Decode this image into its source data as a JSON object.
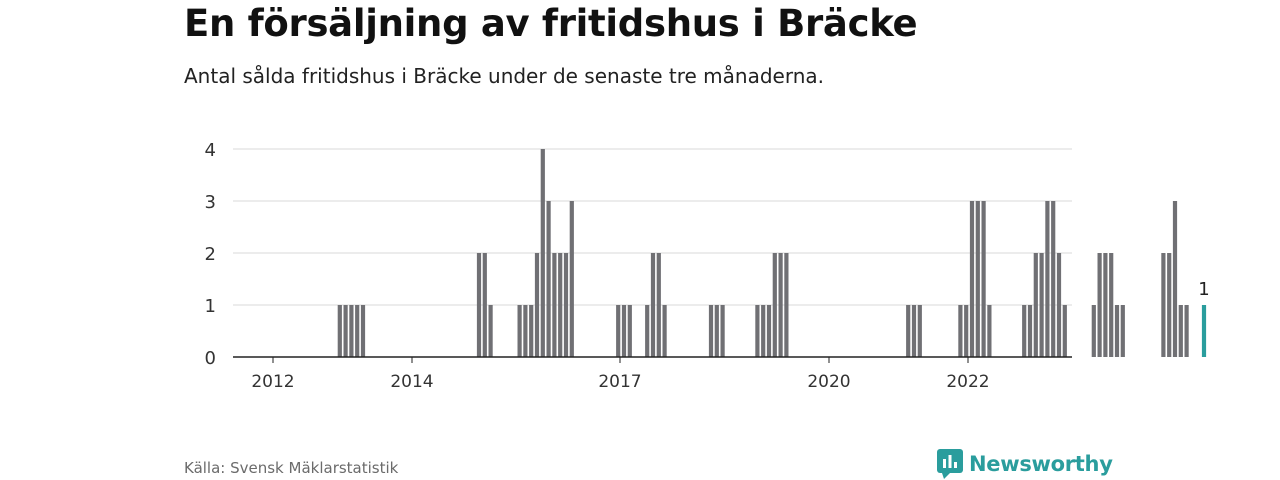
{
  "title": "En försäljning av fritidshus i Bräcke",
  "subtitle": "Antal sålda fritidshus i Bräcke under de senaste tre månaderna.",
  "source": "Källa: Svensk Mäklarstatistik",
  "logo_text": "Newsworthy",
  "colors": {
    "bar": "#707074",
    "highlight": "#2a9d9d",
    "grid": "#d9d9d9",
    "axis": "#222222"
  },
  "chart_data": {
    "type": "bar",
    "xlabel": "",
    "ylabel": "",
    "ylim": [
      0,
      4
    ],
    "yticks": [
      0,
      1,
      2,
      3,
      4
    ],
    "xticks": [
      "2012",
      "2014",
      "2017",
      "2020",
      "2022"
    ],
    "grid": true,
    "annotation": "1",
    "highlight_last": true,
    "categories": [
      "2011-Q4",
      "2012-Q1",
      "2012-Q2",
      "2012-Q3",
      "2012-Q4",
      "2013-Q1",
      "2013-Q2",
      "2013-Q3",
      "2013-Q4",
      "2014-Q1",
      "2014-Q2",
      "2014-Q3",
      "2014-Q4",
      "2015-Q1",
      "2015-Q2",
      "2015-Q3",
      "2015-Q4",
      "2016-Q1",
      "2016-Q2",
      "2016-Q3",
      "2016-Q4",
      "2017-Q1",
      "2017-Q2",
      "2017-Q3",
      "2017-Q4",
      "2018-Q1",
      "2018-Q2",
      "2018-Q3",
      "2018-Q4",
      "2019-Q1",
      "2019-Q2",
      "2019-Q3",
      "2019-Q4",
      "2020-Q1",
      "2020-Q2",
      "2020-Q3",
      "2020-Q4",
      "2021-Q1",
      "2021-Q2",
      "2021-Q3",
      "2021-Q4",
      "2022-Q1",
      "2022-Q2",
      "2022-Q3",
      "2022-Q4",
      "2023-Q1",
      "2023-Q2"
    ],
    "values": [
      0,
      0,
      0,
      0,
      0,
      0,
      0,
      0,
      0,
      0,
      0,
      0,
      0,
      0,
      0,
      0,
      0,
      0,
      0,
      0,
      0,
      0,
      0,
      0,
      0,
      0,
      0,
      0,
      0,
      0,
      0,
      0,
      0,
      0,
      0,
      0,
      0,
      0,
      0,
      0,
      0,
      0,
      0,
      0,
      0,
      0,
      1
    ],
    "bar_values": [
      0,
      0,
      0,
      0,
      0,
      0,
      0,
      0,
      0,
      0,
      0,
      1,
      1,
      1,
      1,
      1,
      0,
      0,
      0,
      0,
      0,
      0,
      0,
      0,
      0,
      0,
      0,
      0,
      0,
      0,
      0,
      0,
      0,
      0,
      0,
      2,
      2,
      1,
      0,
      0,
      0,
      0,
      1,
      1,
      1,
      2,
      4,
      3,
      2,
      2,
      2,
      3,
      0,
      0,
      0,
      0,
      0,
      0,
      0,
      1,
      1,
      1,
      0,
      0,
      1,
      2,
      2,
      1,
      0,
      0,
      0,
      0,
      0,
      0,
      0,
      1,
      1,
      1,
      0,
      0,
      0,
      0,
      0,
      1,
      1,
      1,
      2,
      2,
      2,
      0,
      0,
      0,
      0,
      0,
      0,
      0,
      0,
      0,
      0,
      0,
      0,
      0,
      0,
      0,
      0,
      0,
      0,
      0,
      0,
      1,
      1,
      1,
      0,
      0,
      0,
      0,
      0,
      0,
      1,
      1,
      3,
      3,
      3,
      1,
      0,
      0,
      0,
      0,
      0,
      1,
      1,
      2,
      2,
      3,
      3,
      2,
      1,
      0,
      0,
      0,
      0,
      1,
      2,
      2,
      2,
      1,
      1,
      0,
      0,
      0,
      0,
      0,
      0,
      2,
      2,
      3,
      1,
      1,
      0,
      0,
      1
    ]
  }
}
